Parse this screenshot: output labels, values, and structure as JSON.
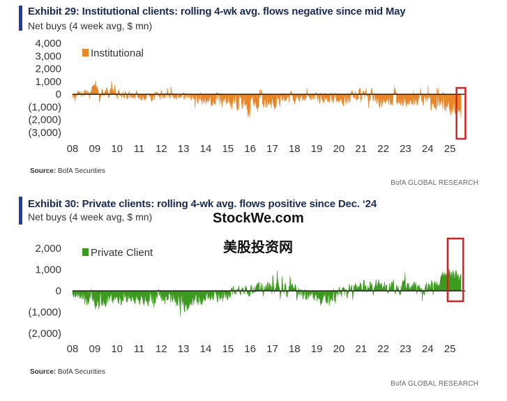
{
  "exhibit29": {
    "title": "Exhibit 29: Institutional clients: rolling 4-wk avg. flows negative since mid May",
    "subtitle": "Net buys (4 week avg, $ mn)",
    "source_label": "Source:",
    "source_text": "BofA Securities",
    "footer": "BofA GLOBAL RESEARCH"
  },
  "exhibit30": {
    "title": "Exhibit 30: Private clients: rolling 4-wk avg. flows positive since Dec. ‘24",
    "subtitle": "Net buys (4 week avg, $ mn)",
    "source_label": "Source:",
    "source_text": "BofA Securities",
    "footer": "BofA GLOBAL RESEARCH"
  },
  "watermark": {
    "line1": "StockWe.com",
    "line2": "美股投资网"
  },
  "colors": {
    "institutional": "#e8872a",
    "private": "#3c9a1e",
    "highlight": "#d42020",
    "title": "#1b2a55",
    "accent": "#1a3fa0"
  },
  "chart_data": [
    {
      "type": "area",
      "series": [
        {
          "name": "Institutional"
        }
      ],
      "x_tick_labels": [
        "08",
        "09",
        "10",
        "11",
        "12",
        "13",
        "14",
        "15",
        "16",
        "17",
        "18",
        "19",
        "20",
        "21",
        "22",
        "23",
        "24",
        "25"
      ],
      "y_tick_labels": [
        "4,000",
        "3,000",
        "2,000",
        "1,000",
        "0",
        "(1,000)",
        "(2,000)",
        "(3,000)"
      ],
      "yticks": [
        4000,
        3000,
        2000,
        1000,
        0,
        -1000,
        -2000,
        -3000
      ],
      "ylim": [
        -3000,
        4000
      ],
      "x_range_years": [
        2008,
        2025.5
      ],
      "legend_position": "top-left",
      "highlight_box_years": [
        2025.3,
        2025.7
      ],
      "seed": 29,
      "segments": [
        {
          "year": 2008,
          "mean": -250,
          "amp": 550,
          "spike": 400
        },
        {
          "year": 2009,
          "mean": 300,
          "amp": 650,
          "spike": 1800
        },
        {
          "year": 2010,
          "mean": 0,
          "amp": 550,
          "spike": 700
        },
        {
          "year": 2011,
          "mean": -300,
          "amp": 550,
          "spike": 700
        },
        {
          "year": 2012,
          "mean": -100,
          "amp": 550,
          "spike": 1000
        },
        {
          "year": 2013,
          "mean": -100,
          "amp": 500,
          "spike": 600
        },
        {
          "year": 2014,
          "mean": -550,
          "amp": 800,
          "spike": 700
        },
        {
          "year": 2015,
          "mean": -500,
          "amp": 850,
          "spike": 1000
        },
        {
          "year": 2016,
          "mean": -800,
          "amp": 950,
          "spike": 900
        },
        {
          "year": 2017,
          "mean": -600,
          "amp": 950,
          "spike": 900
        },
        {
          "year": 2018,
          "mean": -150,
          "amp": 650,
          "spike": 1200
        },
        {
          "year": 2019,
          "mean": -350,
          "amp": 600,
          "spike": 800
        },
        {
          "year": 2020,
          "mean": -350,
          "amp": 700,
          "spike": 1000
        },
        {
          "year": 2021,
          "mean": 0,
          "amp": 1000,
          "spike": 2600
        },
        {
          "year": 2022,
          "mean": -550,
          "amp": 850,
          "spike": 1000
        },
        {
          "year": 2023,
          "mean": -550,
          "amp": 850,
          "spike": 1100
        },
        {
          "year": 2024,
          "mean": -500,
          "amp": 900,
          "spike": 1800
        },
        {
          "year": 2025,
          "mean": -1100,
          "amp": 800,
          "spike": 400
        },
        {
          "year": 2025.5,
          "mean": -1500,
          "amp": 700,
          "spike": 0
        }
      ]
    },
    {
      "type": "area",
      "series": [
        {
          "name": "Private Client"
        }
      ],
      "x_tick_labels": [
        "08",
        "09",
        "10",
        "11",
        "12",
        "13",
        "14",
        "15",
        "16",
        "17",
        "18",
        "19",
        "20",
        "21",
        "22",
        "23",
        "24",
        "25"
      ],
      "y_tick_labels": [
        "2,000",
        "1,000",
        "0",
        "(1,000)",
        "(2,000)"
      ],
      "yticks": [
        2000,
        1000,
        0,
        -1000,
        -2000
      ],
      "ylim": [
        -2000,
        2200
      ],
      "x_range_years": [
        2008,
        2025.5
      ],
      "legend_position": "top-left",
      "highlight_box_years": [
        2024.9,
        2025.6
      ],
      "seed": 30,
      "segments": [
        {
          "year": 2008,
          "mean": -200,
          "amp": 350,
          "spike": 300
        },
        {
          "year": 2009,
          "mean": -500,
          "amp": 600,
          "spike": 300
        },
        {
          "year": 2010,
          "mean": -300,
          "amp": 450,
          "spike": 400
        },
        {
          "year": 2011,
          "mean": -350,
          "amp": 450,
          "spike": 300
        },
        {
          "year": 2012,
          "mean": -350,
          "amp": 500,
          "spike": 300
        },
        {
          "year": 2013,
          "mean": -550,
          "amp": 650,
          "spike": 300
        },
        {
          "year": 2014,
          "mean": -300,
          "amp": 450,
          "spike": 300
        },
        {
          "year": 2015,
          "mean": -150,
          "amp": 400,
          "spike": 400
        },
        {
          "year": 2016,
          "mean": 50,
          "amp": 400,
          "spike": 500
        },
        {
          "year": 2017,
          "mean": 150,
          "amp": 500,
          "spike": 1500
        },
        {
          "year": 2018,
          "mean": 50,
          "amp": 450,
          "spike": 600
        },
        {
          "year": 2019,
          "mean": -350,
          "amp": 500,
          "spike": 300
        },
        {
          "year": 2020,
          "mean": -150,
          "amp": 450,
          "spike": 400
        },
        {
          "year": 2021,
          "mean": 150,
          "amp": 550,
          "spike": 700
        },
        {
          "year": 2022,
          "mean": 250,
          "amp": 550,
          "spike": 1200
        },
        {
          "year": 2023,
          "mean": 150,
          "amp": 500,
          "spike": 700
        },
        {
          "year": 2024,
          "mean": 100,
          "amp": 500,
          "spike": 800
        },
        {
          "year": 2025,
          "mean": 800,
          "amp": 500,
          "spike": 1300
        },
        {
          "year": 2025.5,
          "mean": 600,
          "amp": 400,
          "spike": 0
        }
      ]
    }
  ]
}
